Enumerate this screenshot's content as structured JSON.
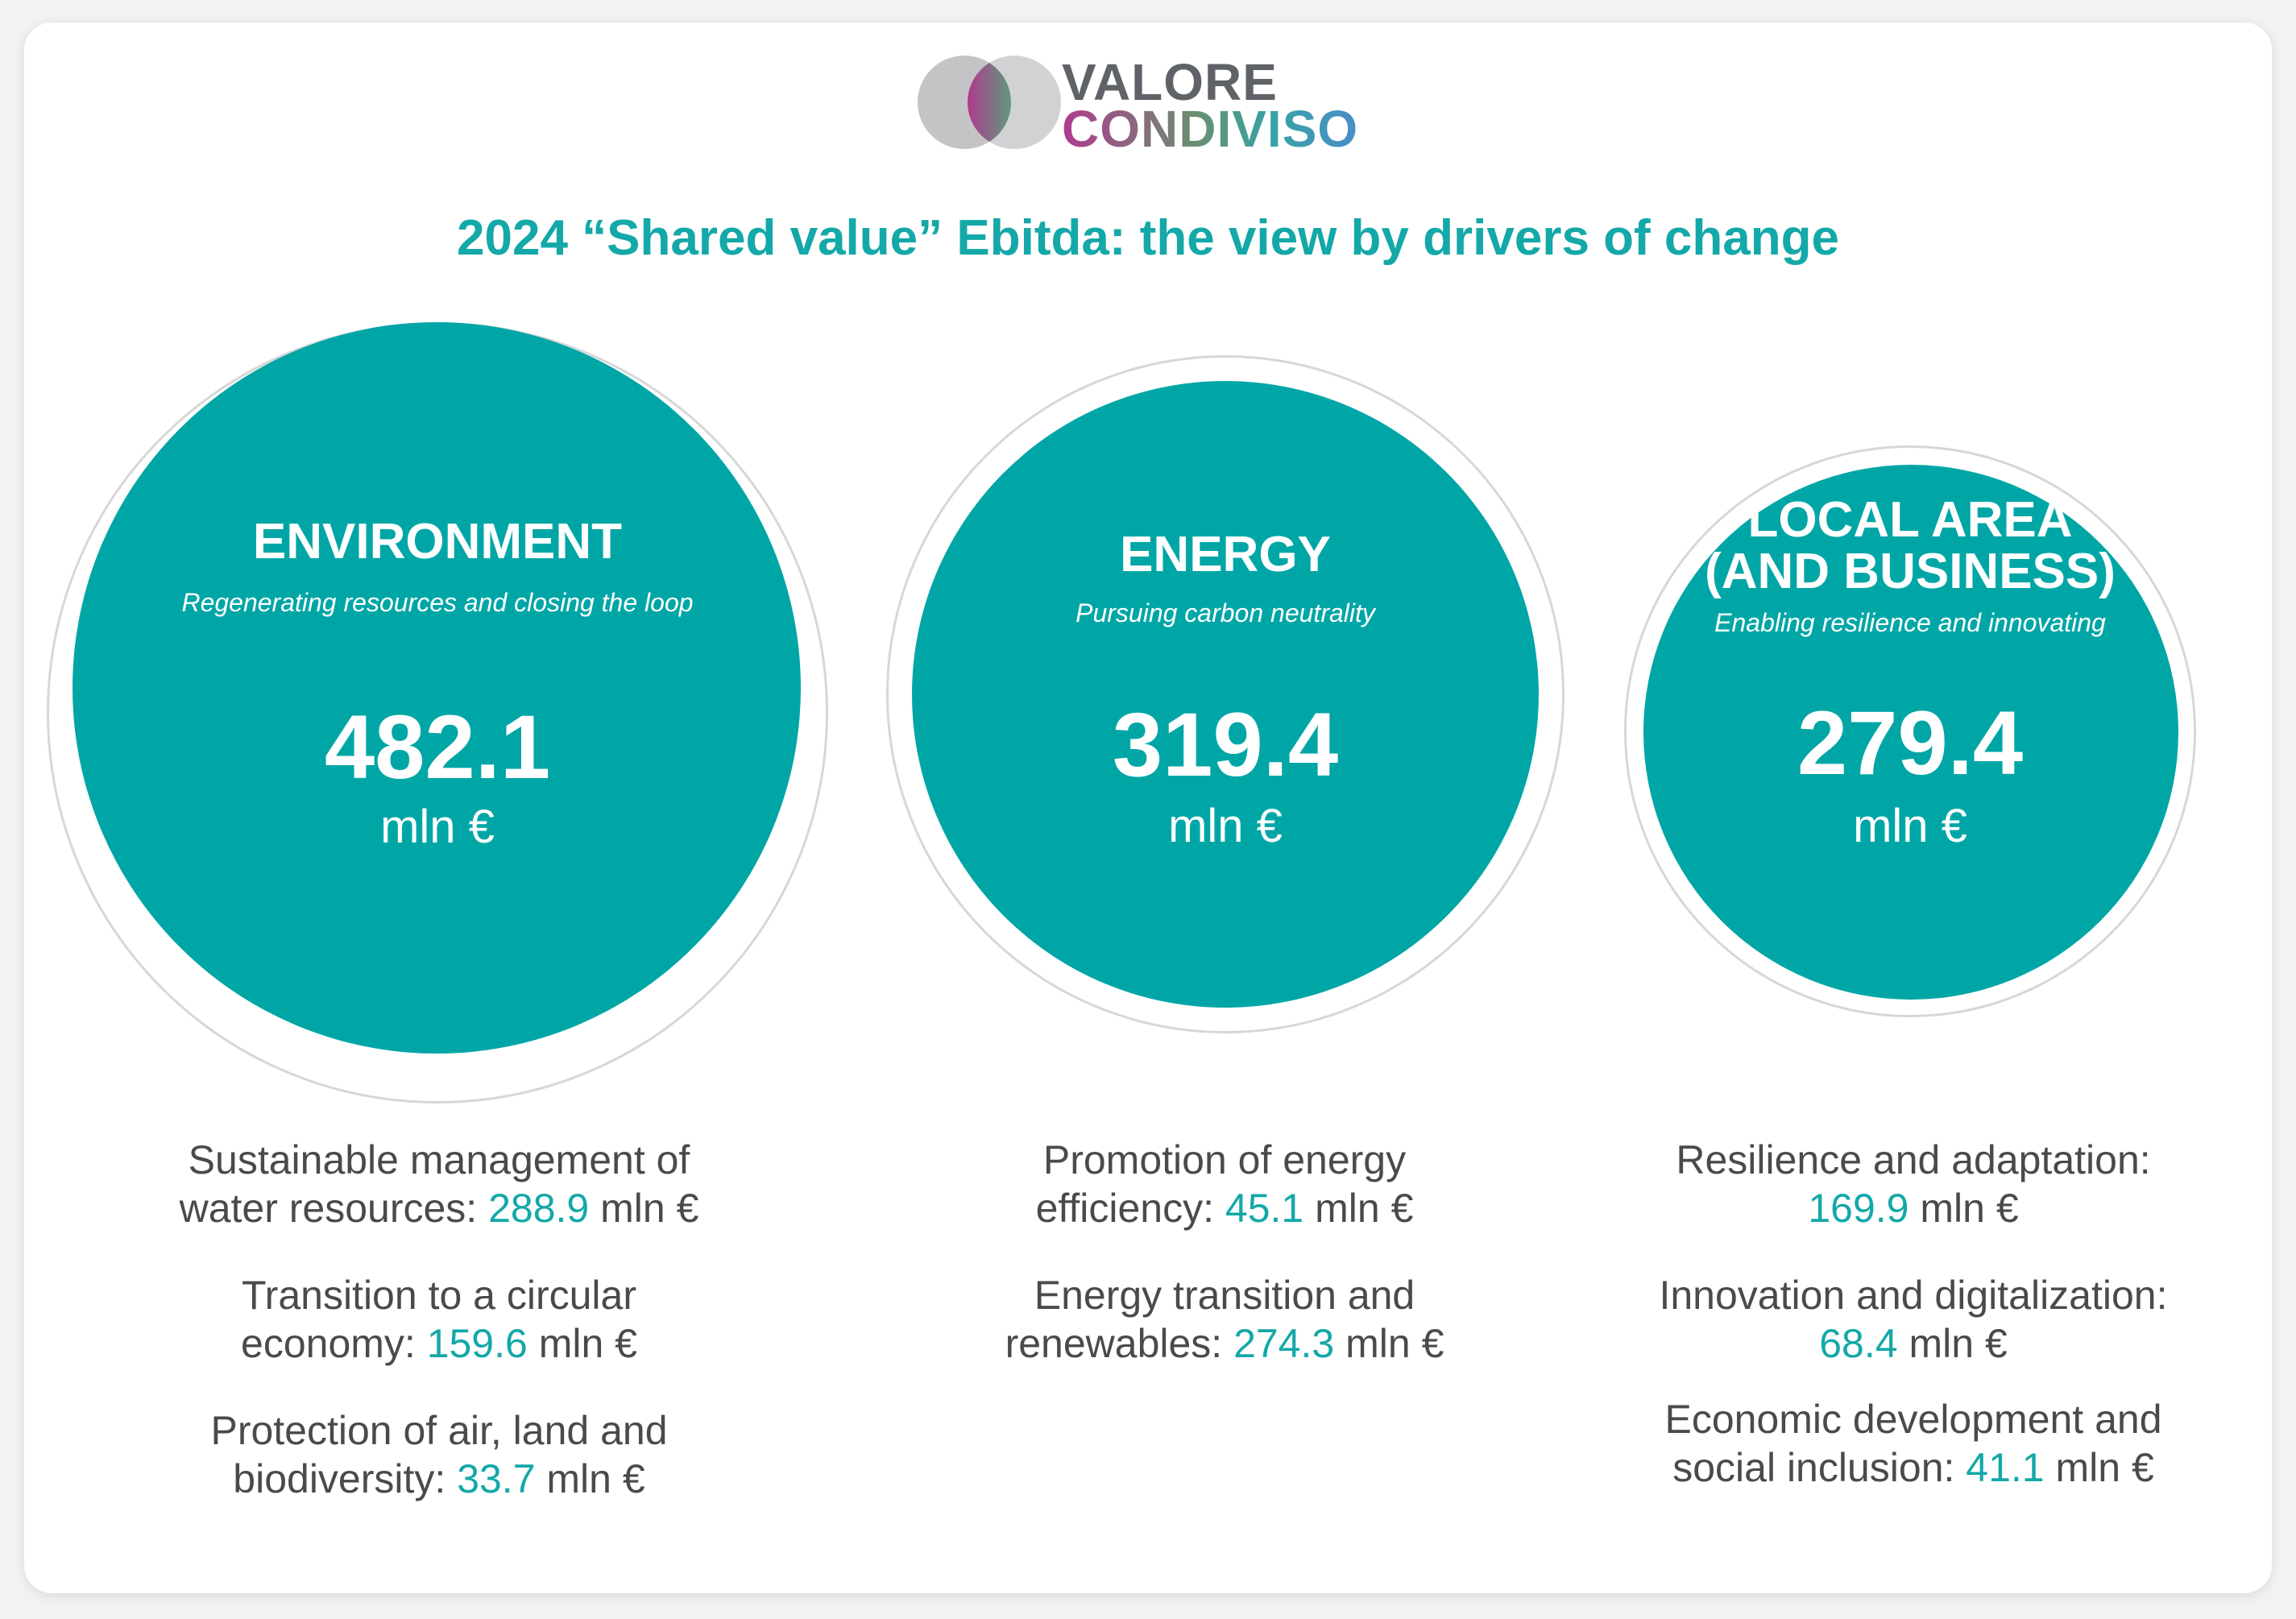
{
  "logo": {
    "line1": "VALORE",
    "line2": "CONDIVISO"
  },
  "title": "2024 “Shared value” Ebitda: the view by drivers of change",
  "drivers": [
    {
      "name": "ENVIRONMENT",
      "subtitle": "Regenerating resources and closing the loop",
      "value": "482.1",
      "unit": "mln €",
      "items": [
        {
          "l1": "Sustainable management of",
          "l2_pre": "water resources: ",
          "value": "288.9",
          "l2_post": " mln €"
        },
        {
          "l1": "Transition to a circular",
          "l2_pre": "economy: ",
          "value": "159.6",
          "l2_post": " mln €"
        },
        {
          "l1": "Protection of air, land and",
          "l2_pre": "biodiversity: ",
          "value": "33.7",
          "l2_post": " mln €"
        }
      ]
    },
    {
      "name": "ENERGY",
      "subtitle": "Pursuing carbon neutrality",
      "value": "319.4",
      "unit": "mln €",
      "items": [
        {
          "l1": "Promotion of energy",
          "l2_pre": "efficiency: ",
          "value": "45.1",
          "l2_post": " mln €"
        },
        {
          "l1": "Energy transition and",
          "l2_pre": "renewables: ",
          "value": "274.3",
          "l2_post": " mln €"
        }
      ]
    },
    {
      "name_l1": "LOCAL AREA",
      "name_l2": "(AND BUSINESS)",
      "subtitle": "Enabling resilience and innovating",
      "value": "279.4",
      "unit": "mln €",
      "items": [
        {
          "l1": "Resilience and adaptation:",
          "l2_pre": "",
          "value": "169.9",
          "l2_post": " mln €"
        },
        {
          "l1": "Innovation and digitalization:",
          "l2_pre": "",
          "value": "68.4",
          "l2_post": " mln €"
        },
        {
          "l1": "Economic development and",
          "l2_pre": "social inclusion: ",
          "value": "41.1",
          "l2_post": " mln €"
        }
      ]
    }
  ],
  "colors": {
    "accent": "#00a6a6",
    "text": "#4a4a4a",
    "ring": "#d7d7d7"
  }
}
